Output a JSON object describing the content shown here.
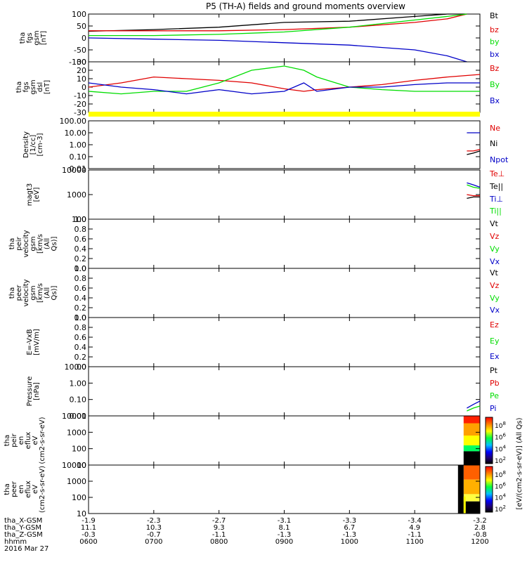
{
  "title": "P5 (TH-A) fields and ground moments overview",
  "date_label": "2016 Mar 27",
  "time_ticks": [
    "0600",
    "0700",
    "0800",
    "0900",
    "1000",
    "1100",
    "1200"
  ],
  "footer_rows": [
    {
      "label": "tha_X-GSM",
      "values": [
        "-1.9",
        "-2.3",
        "-2.7",
        "-3.1",
        "-3.3",
        "-3.4",
        "-3.2"
      ]
    },
    {
      "label": "tha_Y-GSM",
      "values": [
        "11.1",
        "10.3",
        "9.3",
        "8.1",
        "6.7",
        "4.9",
        "2.8"
      ]
    },
    {
      "label": "tha_Z-GSM",
      "values": [
        "-0.3",
        "-0.7",
        "-1.1",
        "-1.3",
        "-1.3",
        "-1.1",
        "-0.8"
      ]
    },
    {
      "label": "hhmm",
      "values": []
    }
  ],
  "colors": {
    "black": "#000000",
    "red": "#e00000",
    "green": "#00dd00",
    "blue": "#0000c8",
    "yellow": "#ffff00"
  },
  "colorbar_label": "[eV/(cm2-s-sr-eV)] (All Qs)",
  "colorbar_ticks": [
    "10^8",
    "10^6",
    "10^4",
    "10^2"
  ],
  "chart_data": [
    {
      "type": "line",
      "panel": "tha fgs gsm",
      "ylabel": "tha fgs gsm [nT]",
      "ylim": [
        -100,
        100
      ],
      "yticks": [
        "100",
        "50",
        "0",
        "-50",
        "-100"
      ],
      "legend": [
        {
          "name": "Bt",
          "color": "#000000"
        },
        {
          "name": "bz",
          "color": "#e00000"
        },
        {
          "name": "by",
          "color": "#00dd00"
        },
        {
          "name": "bx",
          "color": "#0000c8"
        }
      ],
      "x": [
        6.0,
        7.0,
        8.0,
        9.0,
        10.0,
        11.0,
        11.5,
        11.8
      ],
      "series": [
        {
          "name": "Bt",
          "color": "#000000",
          "values": [
            28,
            35,
            45,
            65,
            70,
            90,
            100,
            100
          ]
        },
        {
          "name": "bz",
          "color": "#e00000",
          "values": [
            30,
            30,
            30,
            35,
            45,
            65,
            80,
            100
          ]
        },
        {
          "name": "by",
          "color": "#00dd00",
          "values": [
            10,
            10,
            15,
            25,
            45,
            75,
            90,
            100
          ]
        },
        {
          "name": "bx",
          "color": "#0000c8",
          "values": [
            0,
            -5,
            -10,
            -20,
            -30,
            -50,
            -75,
            -100
          ]
        }
      ]
    },
    {
      "type": "line",
      "panel": "tha fgs gsm dsl",
      "ylabel": "tha fgs gsm dsl [nT]",
      "ylim": [
        -30,
        30
      ],
      "yticks": [
        "30",
        "20",
        "10",
        "0",
        "-10",
        "-20",
        "-30"
      ],
      "legend": [
        {
          "name": "Bz",
          "color": "#e00000"
        },
        {
          "name": "By",
          "color": "#00dd00"
        },
        {
          "name": "Bx",
          "color": "#0000c8"
        }
      ],
      "x": [
        6.0,
        6.5,
        7.0,
        7.5,
        8.0,
        8.5,
        9.0,
        9.3,
        9.5,
        10.0,
        10.5,
        11.0,
        11.5,
        12.0
      ],
      "series": [
        {
          "name": "Bz",
          "color": "#e00000",
          "values": [
            0,
            5,
            12,
            10,
            8,
            5,
            -2,
            -5,
            -3,
            0,
            3,
            8,
            12,
            15
          ]
        },
        {
          "name": "By",
          "color": "#00dd00",
          "values": [
            -5,
            -8,
            -5,
            -5,
            5,
            20,
            25,
            20,
            12,
            0,
            -3,
            -5,
            -5,
            -5
          ]
        },
        {
          "name": "Bx",
          "color": "#0000c8",
          "values": [
            5,
            0,
            -3,
            -8,
            -3,
            -8,
            -5,
            5,
            -5,
            0,
            0,
            3,
            5,
            5
          ]
        }
      ]
    },
    {
      "type": "line",
      "panel": "Density",
      "ylabel": "Density [1/cc] [cm-3]",
      "scale": "log",
      "ylim": [
        0.01,
        100
      ],
      "yticks": [
        "100.00",
        "10.00",
        "1.00",
        "0.10",
        "0.01"
      ],
      "legend": [
        {
          "name": "Ne",
          "color": "#e00000"
        },
        {
          "name": "Ni",
          "color": "#000000"
        },
        {
          "name": "Npot",
          "color": "#0000c8"
        }
      ],
      "x": [
        11.8,
        11.9,
        12.0
      ],
      "series": [
        {
          "name": "Ne",
          "color": "#e00000",
          "values": [
            0.3,
            0.3,
            0.4
          ]
        },
        {
          "name": "Ni",
          "color": "#000000",
          "values": [
            0.15,
            0.2,
            0.3
          ]
        },
        {
          "name": "Npot",
          "color": "#0000c8",
          "values": [
            10,
            10,
            10
          ]
        }
      ]
    },
    {
      "type": "line",
      "panel": "magt3",
      "ylabel": "magt3 [eV]",
      "scale": "log",
      "ylim": [
        100,
        10000
      ],
      "yticks": [
        "10000",
        "1000",
        "100"
      ],
      "legend": [
        {
          "name": "Te⊥",
          "color": "#e00000"
        },
        {
          "name": "Te||",
          "color": "#000000"
        },
        {
          "name": "Ti⊥",
          "color": "#0000c8"
        },
        {
          "name": "Ti||",
          "color": "#00dd00"
        }
      ],
      "x": [
        11.8,
        11.9,
        12.0
      ],
      "series": [
        {
          "name": "Te⊥",
          "color": "#e00000",
          "values": [
            1000,
            900,
            900
          ]
        },
        {
          "name": "Te||",
          "color": "#000000",
          "values": [
            700,
            800,
            800
          ]
        },
        {
          "name": "Ti⊥",
          "color": "#0000c8",
          "values": [
            3000,
            2500,
            2000
          ]
        },
        {
          "name": "Ti||",
          "color": "#00dd00",
          "values": [
            2500,
            2000,
            1800
          ]
        }
      ]
    },
    {
      "type": "line",
      "panel": "tha peir velocity gsm",
      "ylabel": "tha peir velocity gsm [km/s (All Qs)]",
      "ylim": [
        0,
        1
      ],
      "yticks": [
        "1.0",
        "0.8",
        "0.6",
        "0.4",
        "0.2",
        "0.0"
      ],
      "legend": [
        {
          "name": "Vt",
          "color": "#000000"
        },
        {
          "name": "Vz",
          "color": "#e00000"
        },
        {
          "name": "Vy",
          "color": "#00dd00"
        },
        {
          "name": "Vx",
          "color": "#0000c8"
        }
      ],
      "series": []
    },
    {
      "type": "line",
      "panel": "tha peer velocity gsm",
      "ylabel": "tha peer velocity gsm [km/s (All Qs)]",
      "ylim": [
        0,
        1
      ],
      "yticks": [
        "1.0",
        "0.8",
        "0.6",
        "0.4",
        "0.2",
        "0.0"
      ],
      "legend": [
        {
          "name": "Vt",
          "color": "#000000"
        },
        {
          "name": "Vz",
          "color": "#e00000"
        },
        {
          "name": "Vy",
          "color": "#00dd00"
        },
        {
          "name": "Vx",
          "color": "#0000c8"
        }
      ],
      "series": []
    },
    {
      "type": "line",
      "panel": "E=-VxB",
      "ylabel": "E=-VxB [mV/m]",
      "ylim": [
        0,
        1
      ],
      "yticks": [
        "1.0",
        "0.8",
        "0.6",
        "0.4",
        "0.2",
        "0.0"
      ],
      "legend": [
        {
          "name": "Ez",
          "color": "#e00000"
        },
        {
          "name": "Ey",
          "color": "#00dd00"
        },
        {
          "name": "Ex",
          "color": "#0000c8"
        }
      ],
      "series": []
    },
    {
      "type": "line",
      "panel": "Pressure",
      "ylabel": "Pressure [nPa]",
      "scale": "log",
      "ylim": [
        0.01,
        10
      ],
      "yticks": [
        "10.00",
        "1.00",
        "0.10",
        "0.01"
      ],
      "legend": [
        {
          "name": "Pt",
          "color": "#000000"
        },
        {
          "name": "Pb",
          "color": "#e00000"
        },
        {
          "name": "Pe",
          "color": "#00dd00"
        },
        {
          "name": "Pi",
          "color": "#0000c8"
        }
      ],
      "x": [
        11.8,
        11.9,
        12.0
      ],
      "series": [
        {
          "name": "Pi",
          "color": "#0000c8",
          "values": [
            0.03,
            0.05,
            0.08
          ]
        },
        {
          "name": "Pe",
          "color": "#00dd00",
          "values": [
            0.02,
            0.03,
            0.04
          ]
        }
      ]
    },
    {
      "type": "heatmap",
      "panel": "tha peir en eflux",
      "ylabel": "tha peir en eflux eV (cm2-s-sr-eV)",
      "scale": "log",
      "ylim": [
        10,
        10000
      ],
      "yticks": [
        "10000",
        "1000",
        "100",
        "10"
      ],
      "colorbar_ticks": [
        "10^8",
        "10^6",
        "10^4",
        "10^2"
      ]
    },
    {
      "type": "heatmap",
      "panel": "tha peer en eflux",
      "ylabel": "tha peer en eflux eV (cm2-s-sr-eV)",
      "scale": "log",
      "ylim": [
        10,
        10000
      ],
      "yticks": [
        "10000",
        "1000",
        "100",
        "10"
      ],
      "colorbar_ticks": [
        "10^8",
        "10^6",
        "10^4",
        "10^2"
      ]
    }
  ]
}
